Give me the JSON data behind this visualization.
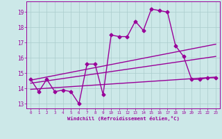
{
  "x": [
    0,
    1,
    2,
    3,
    4,
    5,
    6,
    7,
    8,
    9,
    10,
    11,
    12,
    13,
    14,
    15,
    16,
    17,
    18,
    19,
    20,
    21,
    22,
    23
  ],
  "y_main": [
    14.6,
    13.8,
    14.6,
    13.8,
    13.9,
    13.8,
    13.0,
    15.6,
    15.6,
    13.6,
    17.5,
    17.4,
    17.4,
    18.4,
    17.8,
    19.2,
    19.1,
    19.0,
    16.8,
    16.1,
    14.6,
    14.6,
    14.7,
    14.7
  ],
  "trend1_x": [
    0,
    23
  ],
  "trend1_y": [
    14.55,
    16.9
  ],
  "trend2_x": [
    0,
    23
  ],
  "trend2_y": [
    14.35,
    16.1
  ],
  "trend3_x": [
    0,
    23
  ],
  "trend3_y": [
    13.95,
    14.75
  ],
  "line_color": "#990099",
  "bg_color": "#cce8e8",
  "grid_color": "#aacccc",
  "xlabel": "Windchill (Refroidissement éolien,°C)",
  "xticks": [
    0,
    1,
    2,
    3,
    4,
    5,
    6,
    7,
    8,
    9,
    10,
    11,
    12,
    13,
    14,
    15,
    16,
    17,
    18,
    19,
    20,
    21,
    22,
    23
  ],
  "yticks": [
    13,
    14,
    15,
    16,
    17,
    18,
    19
  ],
  "xlim": [
    -0.5,
    23.5
  ],
  "ylim": [
    12.7,
    19.7
  ],
  "marker": "D",
  "markersize": 2.5,
  "linewidth": 1.0
}
